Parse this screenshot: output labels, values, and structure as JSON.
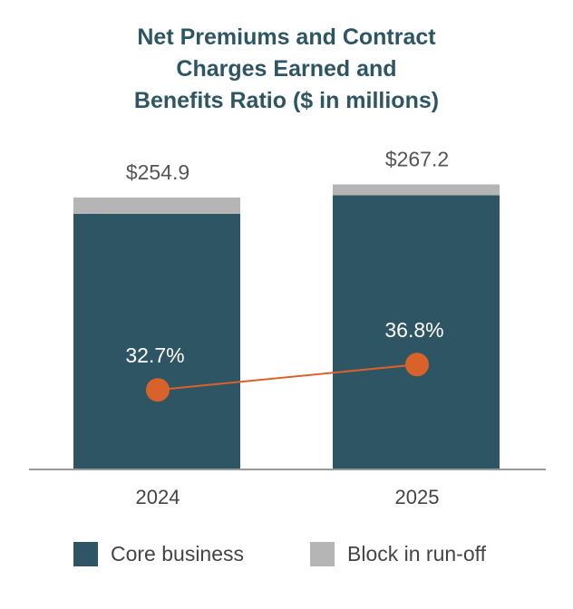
{
  "chart_data": {
    "type": "bar",
    "stacked": true,
    "title_lines": [
      "Net Premiums and Contract",
      "Charges Earned and",
      "Benefits Ratio ($ in millions)"
    ],
    "categories": [
      "2024",
      "2025"
    ],
    "series": [
      {
        "name": "Core business",
        "values": [
          239.6,
          257.0
        ],
        "color": "#2e5563"
      },
      {
        "name": "Block in run-off",
        "values": [
          15.3,
          10.2
        ],
        "color": "#b5b5b5"
      }
    ],
    "totals": [
      254.9,
      267.2
    ],
    "total_labels": [
      "$254.9",
      "$267.2"
    ],
    "line_series": {
      "values": [
        32.7,
        36.8
      ],
      "labels": [
        "32.7%",
        "36.8%"
      ],
      "color": "#d9622b",
      "ylim": [
        20,
        50
      ]
    },
    "ylim": [
      0,
      300
    ],
    "grid": false,
    "legend": "bottom"
  }
}
